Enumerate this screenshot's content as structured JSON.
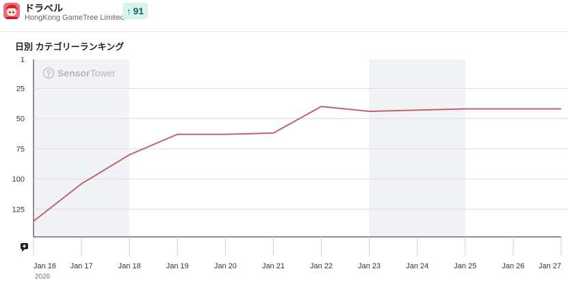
{
  "app": {
    "icon": "app-character-icon",
    "title": "ドラベル",
    "publisher": "HongKong GameTree Limited",
    "rank_badge": {
      "icon": "arrow-up-icon",
      "arrow": "↑",
      "value": "91"
    }
  },
  "section_title": "日別 カテゴリーランキング",
  "watermark": {
    "icon": "sensortower-logo-icon",
    "text_bold": "Sensor",
    "text_regular": "Tower"
  },
  "annotation_icon": "comment-plus-icon",
  "colors": {
    "line": "#c0626a",
    "band": "#f2f3f6",
    "grid": "#dcdcdc",
    "badge_bg": "#d6f5f0"
  },
  "chart_data": {
    "type": "line",
    "title": "",
    "xlabel": "",
    "ylabel": "",
    "y_reversed": true,
    "ylim": [
      1,
      148
    ],
    "y_ticks": [
      "1",
      "25",
      "50",
      "75",
      "100",
      "125"
    ],
    "y_tick_values": [
      1,
      25,
      50,
      75,
      100,
      125
    ],
    "x_ticks": [
      "Jan 16",
      "Jan 17",
      "Jan 18",
      "Jan 19",
      "Jan 20",
      "Jan 21",
      "Jan 22",
      "Jan 23",
      "Jan 24",
      "Jan 25",
      "Jan 26",
      "Jan 27"
    ],
    "year_label": "2026",
    "x": [
      "2026-01-16",
      "2026-01-17",
      "2026-01-18",
      "2026-01-19",
      "2026-01-20",
      "2026-01-21",
      "2026-01-22",
      "2026-01-23",
      "2026-01-24",
      "2026-01-25",
      "2026-01-26",
      "2026-01-27"
    ],
    "series": [
      {
        "values": [
          135,
          104,
          80,
          63,
          63,
          62,
          40,
          44,
          43,
          42,
          42,
          42
        ]
      }
    ],
    "shaded_ranges": [
      [
        "2026-01-16",
        "2026-01-18"
      ],
      [
        "2026-01-23",
        "2026-01-25"
      ]
    ],
    "grid": true
  }
}
